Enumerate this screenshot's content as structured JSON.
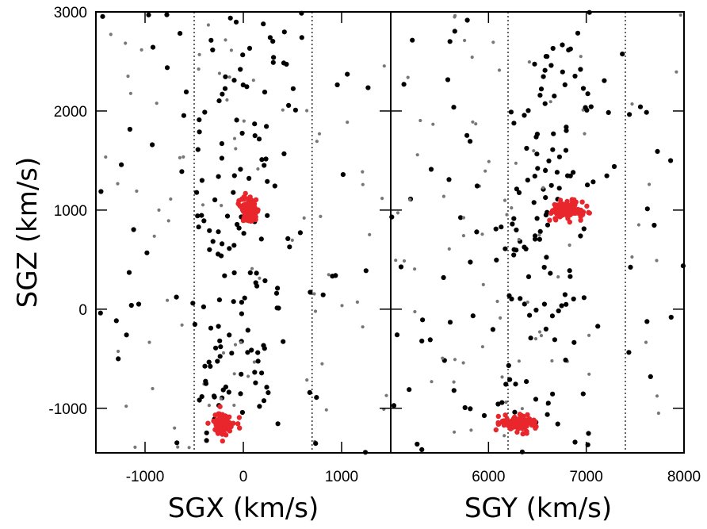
{
  "chart_data": {
    "type": "scatter",
    "ylabel": "SGZ (km/s)",
    "ylim": [
      -1450,
      3000
    ],
    "y_ticks": [
      {
        "value": -1000,
        "label": "-1000"
      },
      {
        "value": 0,
        "label": "0"
      },
      {
        "value": 1000,
        "label": "1000"
      },
      {
        "value": 2000,
        "label": "2000"
      },
      {
        "value": 3000,
        "label": "3000"
      }
    ],
    "colors": {
      "black_points": "#000000",
      "gray_points": "#777777",
      "red_points": "#e8262c"
    },
    "panels": [
      {
        "id": "left",
        "xlabel": "SGX (km/s)",
        "xlim": [
          -1500,
          1500
        ],
        "x_ticks": [
          {
            "value": -1000,
            "label": "-1000"
          },
          {
            "value": 0,
            "label": "0"
          },
          {
            "value": 1000,
            "label": "1000"
          }
        ],
        "dotted_lines_x": [
          -500,
          700
        ],
        "clusters": [
          {
            "color": "red",
            "cx": 70,
            "cy": 1000,
            "sx": 45,
            "sy": 60,
            "n": 120
          },
          {
            "color": "red",
            "cx": -200,
            "cy": -1150,
            "sx": 55,
            "sy": 55,
            "n": 90
          }
        ]
      },
      {
        "id": "right",
        "xlabel": "SGY (km/s)",
        "xlim": [
          5000,
          8000
        ],
        "x_ticks": [
          {
            "value": 6000,
            "label": "6000"
          },
          {
            "value": 7000,
            "label": "7000"
          },
          {
            "value": 8000,
            "label": "8000"
          }
        ],
        "dotted_lines_x": [
          6200,
          7400
        ],
        "clusters": [
          {
            "color": "red",
            "cx": 6800,
            "cy": 1000,
            "sx": 80,
            "sy": 45,
            "n": 110
          },
          {
            "color": "red",
            "cx": 6300,
            "cy": -1150,
            "sx": 90,
            "sy": 40,
            "n": 100
          }
        ]
      }
    ]
  }
}
